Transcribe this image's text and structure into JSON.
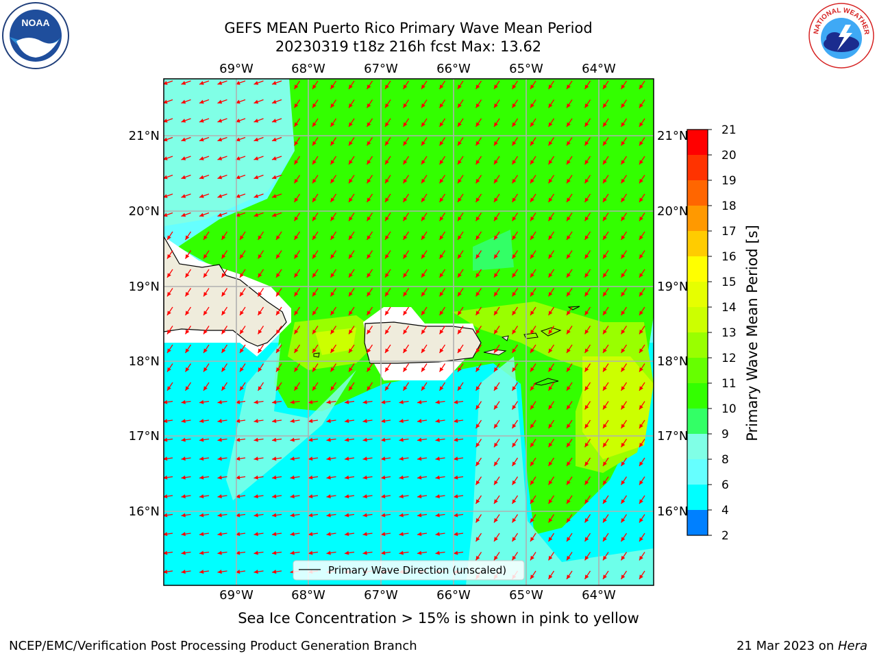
{
  "header": {
    "title_line1": "GEFS MEAN Puerto Rico Primary Wave Mean Period",
    "title_line2": "20230319 t18z 216h fcst   Max: 13.62"
  },
  "logos": {
    "left": "noaa-logo",
    "left_text": "NOAA",
    "right": "nws-logo",
    "right_text": "NATIONAL WEATHER SERVICE"
  },
  "map": {
    "lon_labels": [
      "69°W",
      "68°W",
      "67°W",
      "66°W",
      "65°W",
      "64°W"
    ],
    "lat_labels": [
      "21°N",
      "20°N",
      "19°N",
      "18°N",
      "17°N",
      "16°N"
    ],
    "legend_label": "Primary Wave Direction (unscaled)",
    "arrow_color": "#ff0000",
    "land_color": "#efecdc"
  },
  "colorbar": {
    "label": "Primary Wave Mean Period [s]",
    "ticks": [
      "21",
      "20",
      "19",
      "18",
      "17",
      "16",
      "15",
      "14",
      "13",
      "12",
      "11",
      "10",
      "9",
      "8",
      "6",
      "4",
      "2"
    ],
    "colors": [
      "#ff0000",
      "#ff3300",
      "#ff6600",
      "#ff9900",
      "#ffcc00",
      "#ffff00",
      "#e6ff00",
      "#ccff00",
      "#99ff00",
      "#66ff00",
      "#33ff00",
      "#33ff66",
      "#80ffe6",
      "#66ffff",
      "#00ffff",
      "#0080ff",
      "#0000ff"
    ]
  },
  "footer": {
    "note": "Sea Ice Concentration > 15% is shown in pink to yellow",
    "left": "NCEP/EMC/Verification Post Processing Product Generation Branch",
    "right_prefix": "21 Mar 2023 on ",
    "right_italic": "Hera"
  }
}
